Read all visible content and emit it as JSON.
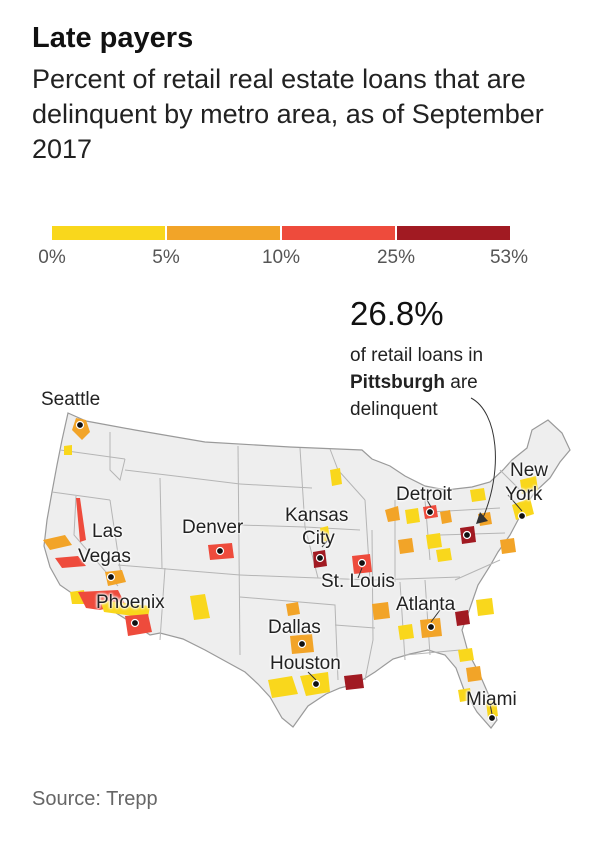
{
  "title": "Late payers",
  "subtitle": "Percent of retail real estate loans that are delinquent by metro area, as of September 2017",
  "legend": {
    "ticks": [
      "0%",
      "5%",
      "10%",
      "25%",
      "53%"
    ],
    "colors": [
      "#f9d71c",
      "#f2a428",
      "#ee4b3c",
      "#a11a22"
    ]
  },
  "callout": {
    "value": "26.8%",
    "line1": "of retail loans in",
    "city": "Pittsburgh",
    "line2": "are",
    "line3": "delinquent"
  },
  "cities": {
    "seattle": "Seattle",
    "las": "Las",
    "vegas": "Vegas",
    "denver": "Denver",
    "kansas": "Kansas",
    "city": "City",
    "detroit": "Detroit",
    "new": "New",
    "york": "York",
    "st_louis": "St. Louis",
    "atlanta": "Atlanta",
    "phoenix": "Phoenix",
    "dallas": "Dallas",
    "houston": "Houston",
    "miami": "Miami"
  },
  "source": "Source: Trepp"
}
